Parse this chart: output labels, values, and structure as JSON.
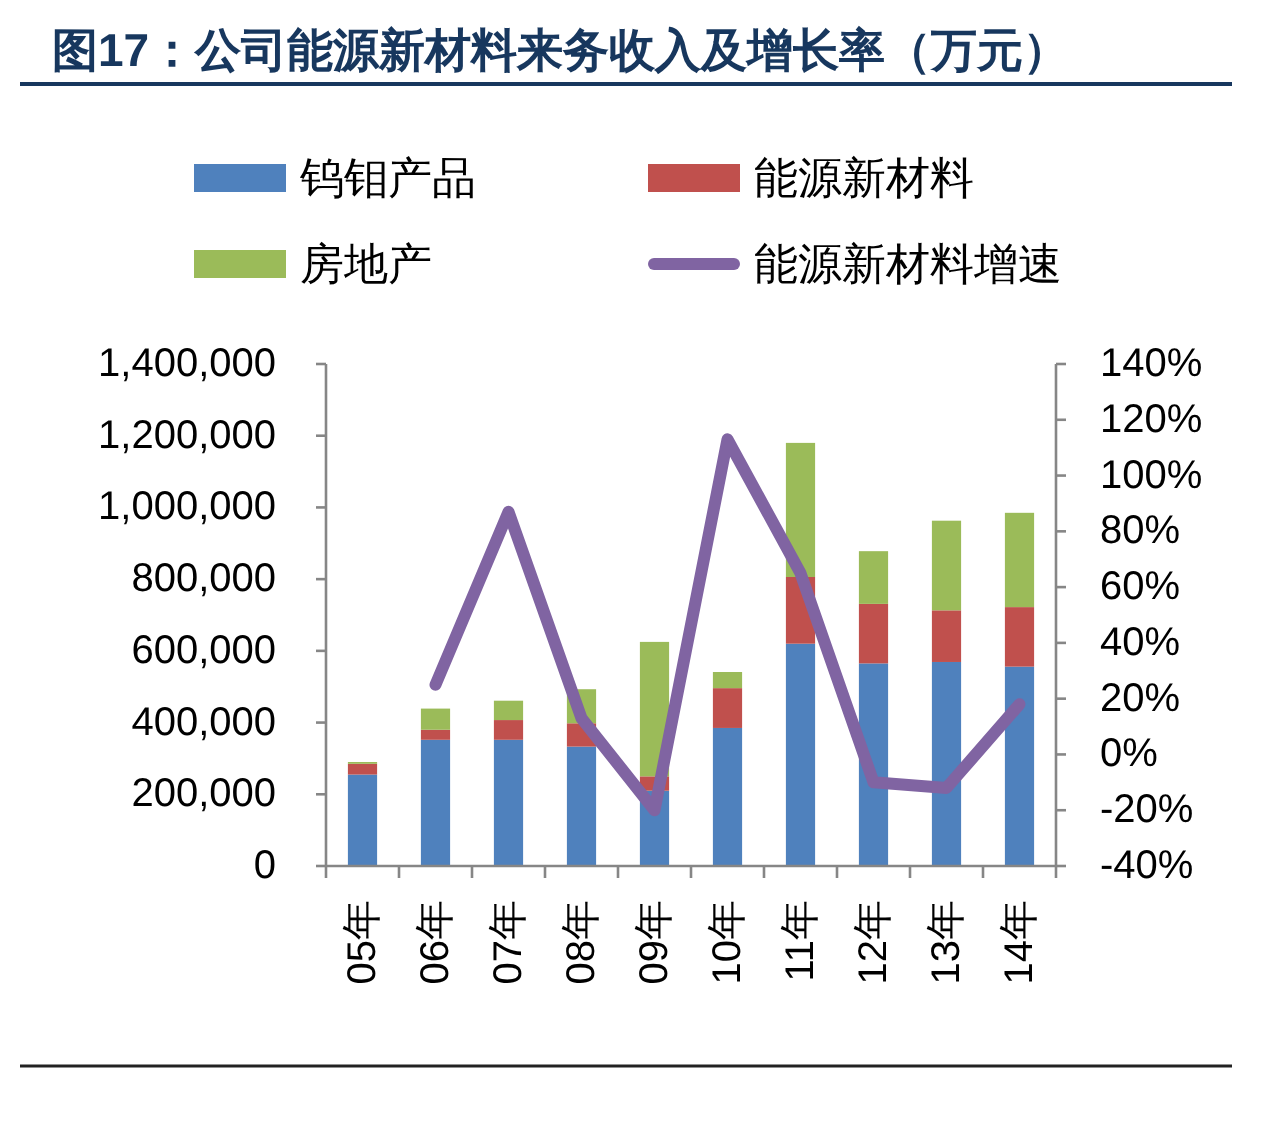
{
  "chart_data": {
    "type": "bar",
    "title": "图17：公司能源新材料来务收入及增长率（万元）",
    "categories": [
      "05年",
      "06年",
      "07年",
      "08年",
      "09年",
      "10年",
      "11年",
      "12年",
      "13年",
      "14年"
    ],
    "stacked": true,
    "series": [
      {
        "name": "钨钼产品",
        "color": "#4f81bd",
        "values": [
          255000,
          352000,
          352000,
          333000,
          210000,
          385000,
          620000,
          565000,
          569000,
          556000
        ]
      },
      {
        "name": "能源新材料",
        "color": "#c0504d",
        "values": [
          30000,
          28000,
          55000,
          65000,
          40000,
          111000,
          186000,
          166000,
          144000,
          166000
        ]
      },
      {
        "name": "房地产",
        "color": "#9bbb59",
        "values": [
          5000,
          59000,
          54000,
          95000,
          375000,
          45000,
          374000,
          147000,
          250000,
          263000
        ]
      },
      {
        "name": "能源新材料增速",
        "type": "line",
        "axis": "y2",
        "color": "#8064a2",
        "values": [
          null,
          25,
          87,
          13,
          -20,
          113,
          65,
          -10,
          -12,
          18
        ]
      }
    ],
    "ylim": [
      0,
      1400000
    ],
    "yticks": [
      0,
      {
        "value": 200000,
        "label": "200,000"
      },
      {
        "value": 400000,
        "label": "400,000"
      },
      {
        "value": 600000,
        "label": "600,000"
      },
      {
        "value": 800000,
        "label": "800,000"
      },
      {
        "value": 1000000,
        "label": "1,000,000"
      },
      {
        "value": 1200000,
        "label": "1,200,000"
      },
      {
        "value": 1400000,
        "label": "1,400,000"
      }
    ],
    "y2lim": [
      -40,
      140
    ],
    "y2ticks": [
      {
        "value": -40,
        "label": "-40%"
      },
      {
        "value": -20,
        "label": "-20%"
      },
      {
        "value": 0,
        "label": "0%"
      },
      {
        "value": 20,
        "label": "20%"
      },
      {
        "value": 40,
        "label": "40%"
      },
      {
        "value": 60,
        "label": "60%"
      },
      {
        "value": 80,
        "label": "80%"
      },
      {
        "value": 100,
        "label": "100%"
      },
      {
        "value": 120,
        "label": "120%"
      },
      {
        "value": 140,
        "label": "140%"
      }
    ],
    "legend": "top"
  }
}
